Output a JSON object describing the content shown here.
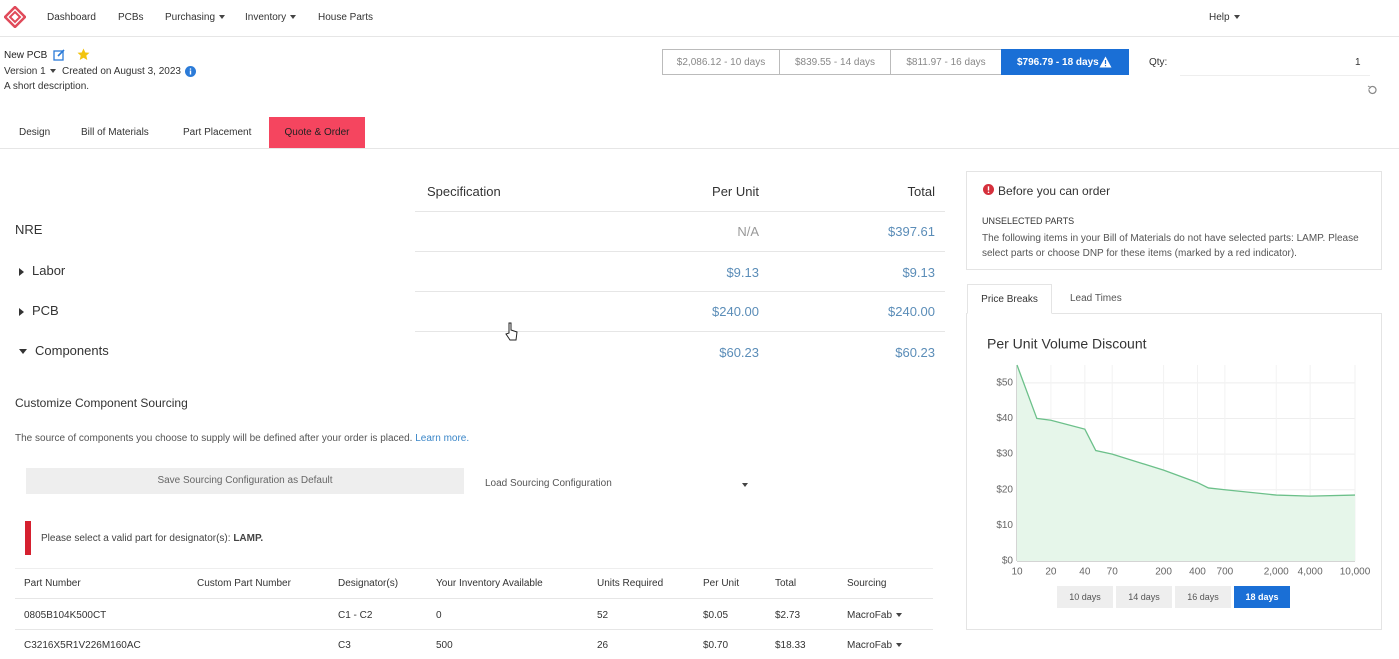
{
  "nav": {
    "links": [
      "Dashboard",
      "PCBs",
      "Purchasing",
      "Inventory",
      "House Parts"
    ],
    "help": "Help"
  },
  "header": {
    "title": "New PCB",
    "version": "Version 1",
    "created": "Created on August 3, 2023",
    "description": "A short description."
  },
  "price_options": [
    "$2,086.12 - 10 days",
    "$839.55 - 14 days",
    "$811.97 - 16 days",
    "$796.79 - 18 days"
  ],
  "qty": {
    "label": "Qty:",
    "value": 1
  },
  "tabs": [
    "Design",
    "Bill of Materials",
    "Part Placement",
    "Quote & Order"
  ],
  "quote": {
    "headers": [
      "Specification",
      "Per Unit",
      "Total"
    ],
    "rows": [
      [
        "NRE",
        "N/A",
        "$397.61"
      ],
      [
        "Labor",
        "$9.13",
        "$9.13"
      ],
      [
        "PCB",
        "$240.00",
        "$240.00"
      ],
      [
        "Components",
        "$60.23",
        "$60.23"
      ]
    ]
  },
  "sourcing": {
    "title": "Customize Component Sourcing",
    "note": "The source of components you choose to supply will be defined after your order is placed.",
    "link": "Learn more.",
    "save_button": "Save Sourcing Configuration as Default",
    "load_select": "Load Sourcing Configuration",
    "alert": "Please select a valid part for designator(s):",
    "alert_bold": "LAMP."
  },
  "parts": {
    "headers": [
      "Part Number",
      "Custom Part Number",
      "Designator(s)",
      "Your Inventory Available",
      "Units Required",
      "Per Unit",
      "Total",
      "Sourcing"
    ],
    "rows": [
      {
        "part_number": "0805B104K500CT",
        "designators": "C1 - C2",
        "inventory": "0",
        "units": "52",
        "per_unit": "$0.05",
        "total": "$2.73",
        "sourcing": "MacroFab"
      },
      {
        "part_number": "C3216X5R1V226M160AC",
        "designators": "C3",
        "inventory": "500",
        "units": "26",
        "per_unit": "$0.70",
        "total": "$18.33",
        "sourcing": "MacroFab"
      }
    ]
  },
  "order_notice": {
    "title": "Before you can order",
    "subtitle": "UNSELECTED PARTS",
    "text": "The following items in your Bill of Materials do not have selected parts: LAMP. Please select parts or choose DNP for these items (marked by a red indicator)."
  },
  "panel_tabs": [
    "Price Breaks",
    "Lead Times"
  ],
  "period_buttons": [
    "10 days",
    "14 days",
    "16 days",
    "18 days"
  ],
  "chart_data": {
    "type": "area",
    "title": "Per Unit Volume Discount",
    "x": [
      10,
      15,
      20,
      40,
      50,
      70,
      200,
      400,
      500,
      700,
      2000,
      4000,
      10000
    ],
    "values": [
      55,
      40,
      39.5,
      37,
      31,
      30,
      25.5,
      22,
      20.5,
      20,
      18.5,
      18.2,
      18.5
    ],
    "color": "#6cc08a",
    "fill_color": "#e6f6ea",
    "xscale": "log",
    "grid": true,
    "xlim": [
      10,
      10000
    ],
    "ylim": [
      0,
      55
    ],
    "xticks": [
      10,
      20,
      40,
      70,
      200,
      400,
      700,
      {
        "value": 2000,
        "label": "2,000"
      },
      {
        "value": 4000,
        "label": "4,000"
      },
      {
        "value": 10000,
        "label": "10,000"
      }
    ],
    "yticks": [
      {
        "value": 0,
        "label": "$0"
      },
      {
        "value": 10,
        "label": "$10"
      },
      {
        "value": 20,
        "label": "$20"
      },
      {
        "value": 30,
        "label": "$30"
      },
      {
        "value": 40,
        "label": "$40"
      },
      {
        "value": 50,
        "label": "$50"
      }
    ]
  }
}
